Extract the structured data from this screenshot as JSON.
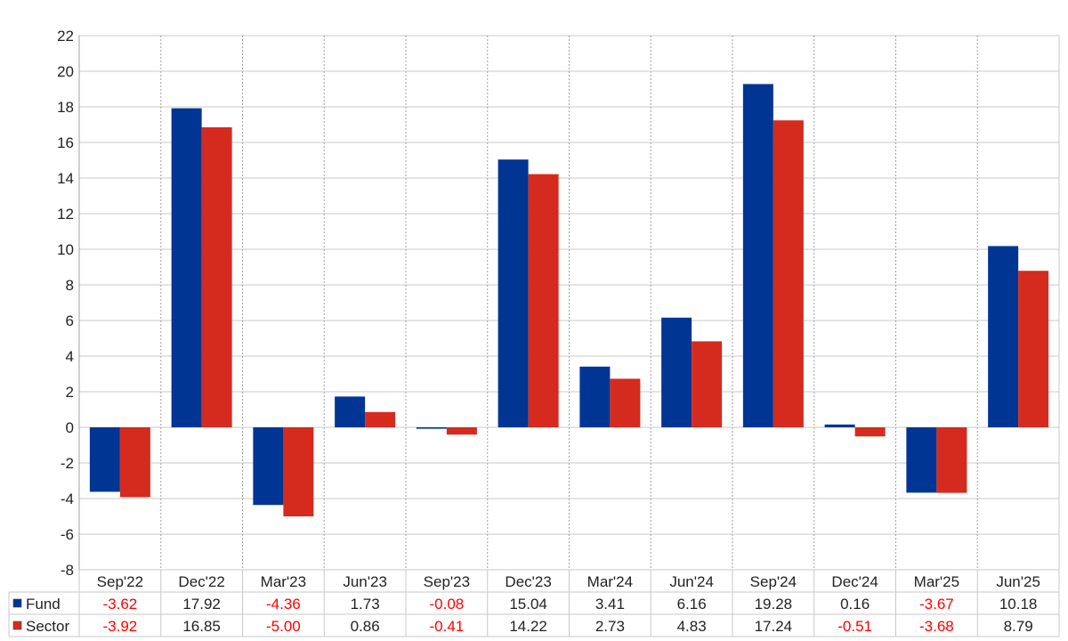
{
  "chart_data": {
    "type": "bar",
    "categories": [
      "Sep'22",
      "Dec'22",
      "Mar'23",
      "Jun'23",
      "Sep'23",
      "Dec'23",
      "Mar'24",
      "Jun'24",
      "Sep'24",
      "Dec'24",
      "Mar'25",
      "Jun'25"
    ],
    "series": [
      {
        "name": "Fund",
        "color": "#003594",
        "values": [
          -3.62,
          17.92,
          -4.36,
          1.73,
          -0.08,
          15.04,
          3.41,
          6.16,
          19.28,
          0.16,
          -3.67,
          10.18
        ],
        "labels": [
          "-3.62",
          "17.92",
          "-4.36",
          "1.73",
          "-0.08",
          "15.04",
          "3.41",
          "6.16",
          "19.28",
          "0.16",
          "-3.67",
          "10.18"
        ]
      },
      {
        "name": "Sector",
        "color": "#d52b1e",
        "values": [
          -3.92,
          16.85,
          -5.0,
          0.86,
          -0.41,
          14.22,
          2.73,
          4.83,
          17.24,
          -0.51,
          -3.68,
          8.79
        ],
        "labels": [
          "-3.92",
          "16.85",
          "-5.00",
          "0.86",
          "-0.41",
          "14.22",
          "2.73",
          "4.83",
          "17.24",
          "-0.51",
          "-3.68",
          "8.79"
        ]
      }
    ],
    "ylim": [
      -8,
      22
    ],
    "yticks": [
      "22",
      "20",
      "18",
      "16",
      "14",
      "12",
      "10",
      "8",
      "6",
      "4",
      "2",
      "0",
      "-2",
      "-4",
      "-6",
      "-8"
    ],
    "grid": true,
    "negative_label_color": "#ff0000",
    "positive_label_color": "#222222",
    "legend": "table-below"
  }
}
